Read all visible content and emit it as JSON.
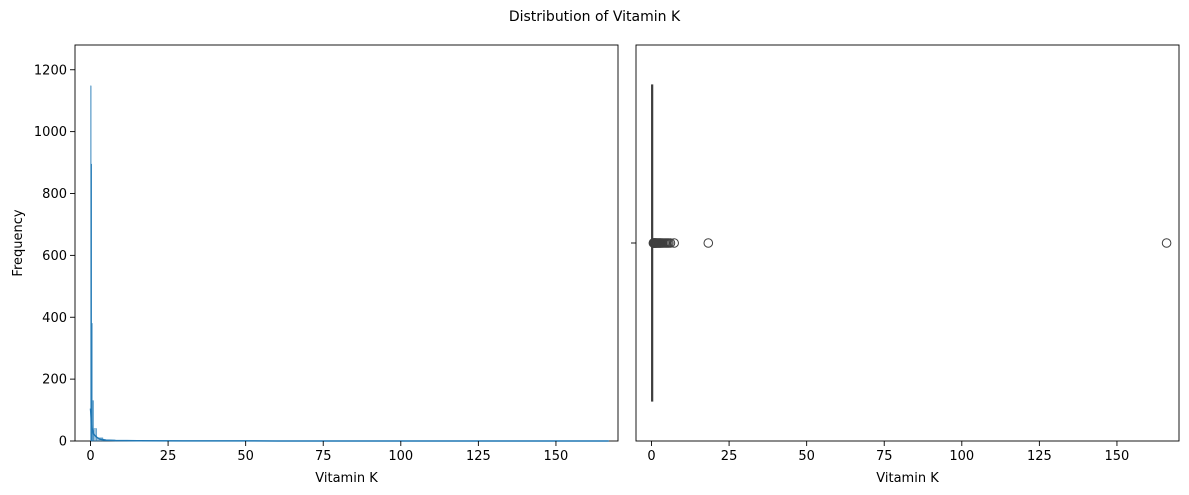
{
  "figure": {
    "title": "Distribution of Vitamin K"
  },
  "chart_data": [
    {
      "type": "histogram",
      "xlabel": "Vitamin K",
      "ylabel": "Frequency",
      "xlim": [
        -5,
        170
      ],
      "ylim": [
        0,
        1280
      ],
      "xticks": [
        0,
        25,
        50,
        75,
        100,
        125,
        150
      ],
      "yticks": [
        0,
        200,
        400,
        600,
        800,
        1000,
        1200
      ],
      "bins": [
        {
          "x0": 0.0,
          "x1": 0.2,
          "count": 1148
        },
        {
          "x0": 0.2,
          "x1": 0.4,
          "count": 895
        },
        {
          "x0": 0.4,
          "x1": 0.6,
          "count": 380
        },
        {
          "x0": 0.6,
          "x1": 1.0,
          "count": 130
        },
        {
          "x0": 1.0,
          "x1": 2.0,
          "count": 40
        },
        {
          "x0": 2.0,
          "x1": 4.0,
          "count": 10
        },
        {
          "x0": 4.0,
          "x1": 8.0,
          "count": 3
        },
        {
          "x0": 8.0,
          "x1": 20.0,
          "count": 1
        },
        {
          "x0": 165.0,
          "x1": 167.0,
          "count": 1
        }
      ],
      "kde": [
        [
          0,
          105
        ],
        [
          0.5,
          40
        ],
        [
          1,
          22
        ],
        [
          2,
          12
        ],
        [
          3,
          6
        ],
        [
          5,
          3
        ],
        [
          8,
          1.5
        ],
        [
          15,
          1
        ],
        [
          30,
          0.5
        ],
        [
          60,
          0.2
        ],
        [
          100,
          0.1
        ],
        [
          140,
          0.1
        ],
        [
          167,
          0.1
        ]
      ],
      "color": "#1f77b4"
    },
    {
      "type": "boxplot",
      "xlabel": "Vitamin K",
      "xlim": [
        -5,
        170
      ],
      "xticks": [
        0,
        25,
        50,
        75,
        100,
        125,
        150
      ],
      "box": {
        "q1": 0.05,
        "median": 0.1,
        "q3": 0.25,
        "whisker_low": 0.0,
        "whisker_high": 0.55
      },
      "outliers": [
        0.6,
        0.7,
        0.8,
        0.9,
        1.0,
        1.1,
        1.2,
        1.3,
        1.5,
        1.6,
        1.8,
        2.0,
        2.2,
        2.4,
        2.6,
        2.8,
        3.0,
        3.3,
        3.6,
        4.0,
        4.4,
        4.8,
        5.2,
        5.6,
        6.1,
        7.3,
        18.3,
        166.0
      ],
      "color": "#1f77b4"
    }
  ]
}
